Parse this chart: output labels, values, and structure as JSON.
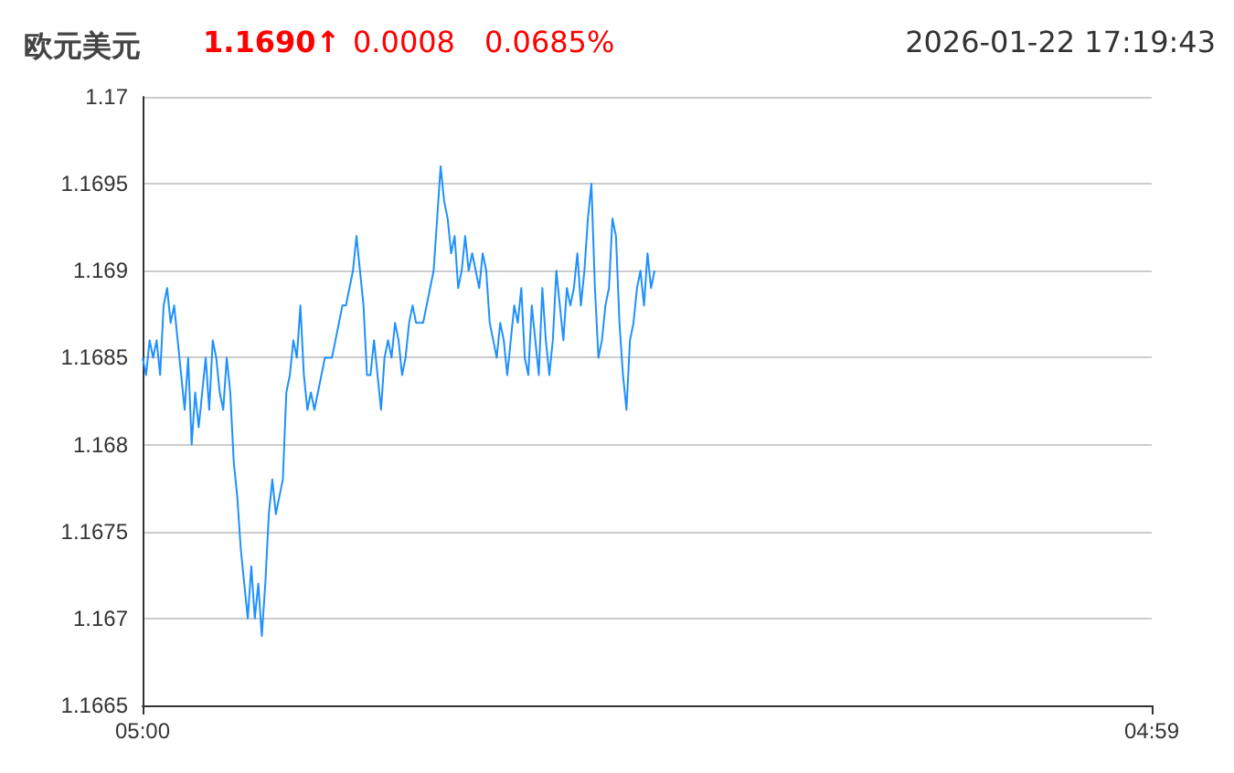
{
  "chart_data": {
    "type": "line",
    "title": "欧元美元",
    "annotations": [
      "1.1690↑",
      "0.0008",
      "0.0685%",
      "2026-01-22 17:19:43"
    ],
    "x": [
      "2026-01-22T05:00",
      "2026-01-22T05:05",
      "2026-01-22T05:10",
      "2026-01-22T05:15",
      "2026-01-22T05:20",
      "2026-01-22T05:25",
      "2026-01-22T05:30",
      "2026-01-22T05:35",
      "2026-01-22T05:40",
      "2026-01-22T05:45",
      "2026-01-22T05:50",
      "2026-01-22T05:55",
      "2026-01-22T06:00",
      "2026-01-22T06:05",
      "2026-01-22T06:10",
      "2026-01-22T06:15",
      "2026-01-22T06:20",
      "2026-01-22T06:25",
      "2026-01-22T06:30",
      "2026-01-22T06:35",
      "2026-01-22T06:40",
      "2026-01-22T06:45",
      "2026-01-22T06:50",
      "2026-01-22T06:55",
      "2026-01-22T07:00",
      "2026-01-22T07:05",
      "2026-01-22T07:10",
      "2026-01-22T07:15",
      "2026-01-22T07:20",
      "2026-01-22T07:25",
      "2026-01-22T07:30",
      "2026-01-22T07:35",
      "2026-01-22T07:40",
      "2026-01-22T07:45",
      "2026-01-22T07:50",
      "2026-01-22T07:55",
      "2026-01-22T08:00",
      "2026-01-22T08:05",
      "2026-01-22T08:10",
      "2026-01-22T08:15",
      "2026-01-22T08:20",
      "2026-01-22T08:25",
      "2026-01-22T08:30",
      "2026-01-22T08:35",
      "2026-01-22T08:40",
      "2026-01-22T08:45",
      "2026-01-22T08:50",
      "2026-01-22T08:55",
      "2026-01-22T09:00",
      "2026-01-22T09:05",
      "2026-01-22T09:10",
      "2026-01-22T09:15",
      "2026-01-22T09:20",
      "2026-01-22T09:25",
      "2026-01-22T09:30",
      "2026-01-22T09:35",
      "2026-01-22T09:40",
      "2026-01-22T09:45",
      "2026-01-22T09:50",
      "2026-01-22T09:55",
      "2026-01-22T10:00",
      "2026-01-22T10:05",
      "2026-01-22T10:10",
      "2026-01-22T10:15",
      "2026-01-22T10:20",
      "2026-01-22T10:25",
      "2026-01-22T10:30",
      "2026-01-22T10:35",
      "2026-01-22T10:40",
      "2026-01-22T10:45",
      "2026-01-22T10:50",
      "2026-01-22T10:55",
      "2026-01-22T11:00",
      "2026-01-22T11:05",
      "2026-01-22T11:10",
      "2026-01-22T11:15",
      "2026-01-22T11:20",
      "2026-01-22T11:25",
      "2026-01-22T11:30",
      "2026-01-22T11:35",
      "2026-01-22T11:40",
      "2026-01-22T11:45",
      "2026-01-22T11:50",
      "2026-01-22T11:55",
      "2026-01-22T12:00",
      "2026-01-22T12:05",
      "2026-01-22T12:10",
      "2026-01-22T12:15",
      "2026-01-22T12:20",
      "2026-01-22T12:25",
      "2026-01-22T12:30",
      "2026-01-22T12:35",
      "2026-01-22T12:40",
      "2026-01-22T12:45",
      "2026-01-22T12:50",
      "2026-01-22T12:55",
      "2026-01-22T13:00",
      "2026-01-22T13:05",
      "2026-01-22T13:10",
      "2026-01-22T13:15",
      "2026-01-22T13:20",
      "2026-01-22T13:25",
      "2026-01-22T13:30",
      "2026-01-22T13:35",
      "2026-01-22T13:40",
      "2026-01-22T13:45",
      "2026-01-22T13:50",
      "2026-01-22T13:55",
      "2026-01-22T14:00",
      "2026-01-22T14:05",
      "2026-01-22T14:10",
      "2026-01-22T14:15",
      "2026-01-22T14:20",
      "2026-01-22T14:25",
      "2026-01-22T14:30",
      "2026-01-22T14:35",
      "2026-01-22T14:40",
      "2026-01-22T14:45",
      "2026-01-22T14:50",
      "2026-01-22T14:55",
      "2026-01-22T15:00",
      "2026-01-22T15:05",
      "2026-01-22T15:10",
      "2026-01-22T15:15",
      "2026-01-22T15:20",
      "2026-01-22T15:25",
      "2026-01-22T15:30",
      "2026-01-22T15:35",
      "2026-01-22T15:40",
      "2026-01-22T15:45",
      "2026-01-22T15:50",
      "2026-01-22T15:55",
      "2026-01-22T16:00",
      "2026-01-22T16:05",
      "2026-01-22T16:10",
      "2026-01-22T16:15",
      "2026-01-22T16:20",
      "2026-01-22T16:25",
      "2026-01-22T16:30",
      "2026-01-22T16:35",
      "2026-01-22T16:40",
      "2026-01-22T16:45",
      "2026-01-22T16:50",
      "2026-01-22T16:55",
      "2026-01-22T17:00",
      "2026-01-22T17:05",
      "2026-01-22T17:10"
    ],
    "series": [
      {
        "color": "#1e90ff",
        "values": [
          1.1685,
          1.1684,
          1.1686,
          1.1685,
          1.1686,
          1.1684,
          1.1688,
          1.1689,
          1.1687,
          1.1688,
          1.1686,
          1.1684,
          1.1682,
          1.1685,
          1.168,
          1.1683,
          1.1681,
          1.1683,
          1.1685,
          1.1682,
          1.1686,
          1.1685,
          1.1683,
          1.1682,
          1.1685,
          1.1683,
          1.1679,
          1.1677,
          1.1674,
          1.1672,
          1.167,
          1.1673,
          1.167,
          1.1672,
          1.1669,
          1.1672,
          1.1676,
          1.1678,
          1.1676,
          1.1677,
          1.1678,
          1.1683,
          1.1684,
          1.1686,
          1.1685,
          1.1688,
          1.1684,
          1.1682,
          1.1683,
          1.1682,
          1.1683,
          1.1684,
          1.1685,
          1.1685,
          1.1685,
          1.1686,
          1.1687,
          1.1688,
          1.1688,
          1.1689,
          1.169,
          1.1692,
          1.169,
          1.1688,
          1.1684,
          1.1684,
          1.1686,
          1.1684,
          1.1682,
          1.1685,
          1.1686,
          1.1685,
          1.1687,
          1.1686,
          1.1684,
          1.1685,
          1.1687,
          1.1688,
          1.1687,
          1.1687,
          1.1687,
          1.1688,
          1.1689,
          1.169,
          1.1693,
          1.1696,
          1.1694,
          1.1693,
          1.1691,
          1.1692,
          1.1689,
          1.169,
          1.1692,
          1.169,
          1.1691,
          1.169,
          1.1689,
          1.1691,
          1.169,
          1.1687,
          1.1686,
          1.1685,
          1.1687,
          1.1686,
          1.1684,
          1.1686,
          1.1688,
          1.1687,
          1.1689,
          1.1685,
          1.1684,
          1.1688,
          1.1686,
          1.1684,
          1.1689,
          1.1686,
          1.1684,
          1.1686,
          1.169,
          1.1688,
          1.1686,
          1.1689,
          1.1688,
          1.1689,
          1.1691,
          1.1688,
          1.169,
          1.1693,
          1.1695,
          1.1689,
          1.1685,
          1.1686,
          1.1688,
          1.1689,
          1.1693,
          1.1692,
          1.1687,
          1.1684,
          1.1682,
          1.1686,
          1.1687,
          1.1689,
          1.169,
          1.1688,
          1.1691,
          1.1689,
          1.169
        ]
      }
    ],
    "xlim": [
      "2026-01-22T05:00",
      "2026-01-23T04:59"
    ],
    "xticks": [
      {
        "value": "2026-01-22T05:00",
        "label": "05:00"
      },
      {
        "value": "2026-01-23T04:59",
        "label": "04:59"
      }
    ],
    "ylim": [
      1.1665,
      1.17
    ],
    "yticks": [
      1.1665,
      1.167,
      1.1675,
      1.168,
      1.1685,
      1.169,
      1.1695,
      1.17
    ],
    "grid": "y",
    "marker": "none",
    "line_style": "solid"
  }
}
